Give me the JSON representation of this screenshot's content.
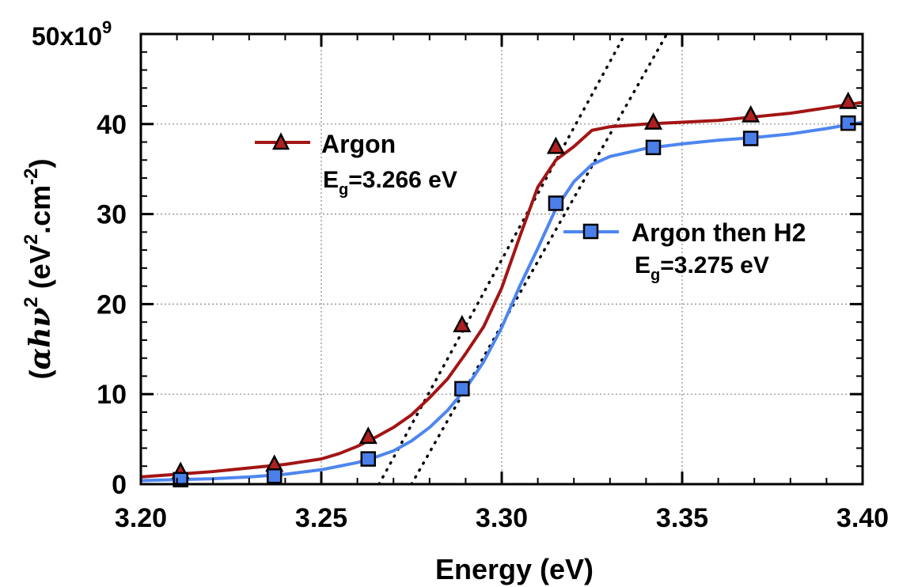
{
  "chart_data": {
    "type": "line",
    "title": "",
    "xlabel": "Energy (eV)",
    "ylabel": {
      "pre": "(",
      "greek": "αhν",
      "exp1": "2",
      "mid": " (eV",
      "exp2": "2",
      "mid2": ".cm",
      "exp3": "-2",
      "post": ")"
    },
    "xlim": [
      3.2,
      3.4
    ],
    "ylim": [
      0,
      50
    ],
    "x_ticks": [
      {
        "value": 3.2,
        "label": "3.20"
      },
      {
        "value": 3.25,
        "label": "3.25"
      },
      {
        "value": 3.3,
        "label": "3.30"
      },
      {
        "value": 3.35,
        "label": "3.35"
      },
      {
        "value": 3.4,
        "label": "3.40"
      }
    ],
    "y_ticks": [
      {
        "value": 0,
        "label": "0"
      },
      {
        "value": 10,
        "label": "10"
      },
      {
        "value": 20,
        "label": "20"
      },
      {
        "value": 30,
        "label": "30"
      },
      {
        "value": 40,
        "label": "40"
      }
    ],
    "y_top_label": {
      "value": 50,
      "base": "50x10",
      "exp": "9"
    },
    "grid": true,
    "series": [
      {
        "name": "Argon",
        "color": "#a31515",
        "marker_fill": "#b02020",
        "marker": "triangle",
        "gap_label": {
          "base": "E",
          "sub": "g",
          "rest": "=3.266 eV"
        },
        "x": [
          3.2,
          3.21,
          3.22,
          3.23,
          3.24,
          3.25,
          3.255,
          3.26,
          3.265,
          3.27,
          3.275,
          3.28,
          3.285,
          3.29,
          3.295,
          3.3,
          3.305,
          3.31,
          3.315,
          3.32,
          3.325,
          3.33,
          3.34,
          3.35,
          3.36,
          3.37,
          3.38,
          3.39,
          3.4
        ],
        "y": [
          0.8,
          1.1,
          1.4,
          1.8,
          2.2,
          2.8,
          3.4,
          4.2,
          5.2,
          6.3,
          7.7,
          9.6,
          11.7,
          14.5,
          17.5,
          21.8,
          27.5,
          33.0,
          36.0,
          37.5,
          39.3,
          39.7,
          40.0,
          40.2,
          40.4,
          40.8,
          41.2,
          41.8,
          42.4
        ],
        "marker_x": [
          3.211,
          3.237,
          3.263,
          3.289,
          3.315,
          3.342,
          3.369,
          3.396
        ],
        "marker_y": [
          1.3,
          2.1,
          5.2,
          17.6,
          37.4,
          40.1,
          40.9,
          42.4
        ]
      },
      {
        "name": "Argon then H2",
        "color": "#4d86ef",
        "marker_fill": "#4a7fea",
        "marker": "square",
        "gap_label": {
          "base": "E",
          "sub": "g",
          "rest": "=3.275 eV"
        },
        "x": [
          3.2,
          3.21,
          3.22,
          3.23,
          3.24,
          3.25,
          3.255,
          3.26,
          3.265,
          3.27,
          3.275,
          3.28,
          3.285,
          3.29,
          3.295,
          3.3,
          3.305,
          3.31,
          3.315,
          3.32,
          3.325,
          3.33,
          3.34,
          3.35,
          3.36,
          3.37,
          3.38,
          3.39,
          3.4
        ],
        "y": [
          0.4,
          0.5,
          0.6,
          0.8,
          1.1,
          1.6,
          2.0,
          2.4,
          3.0,
          3.7,
          4.8,
          6.3,
          8.2,
          10.6,
          13.6,
          17.4,
          22.0,
          26.2,
          30.6,
          33.6,
          35.5,
          36.4,
          37.3,
          37.8,
          38.2,
          38.5,
          38.9,
          39.5,
          40.2
        ],
        "marker_x": [
          3.211,
          3.237,
          3.263,
          3.289,
          3.315,
          3.342,
          3.369,
          3.396
        ],
        "marker_y": [
          0.5,
          0.9,
          2.8,
          10.6,
          31.2,
          37.4,
          38.4,
          40.1
        ]
      }
    ],
    "fit_lines": [
      {
        "name": "argon-fit",
        "x_intercept": 3.266,
        "through": [
          3.29,
          17.6
        ]
      },
      {
        "name": "argon-h2-fit",
        "x_intercept": 3.275,
        "through": [
          3.29,
          10.6
        ]
      }
    ]
  }
}
